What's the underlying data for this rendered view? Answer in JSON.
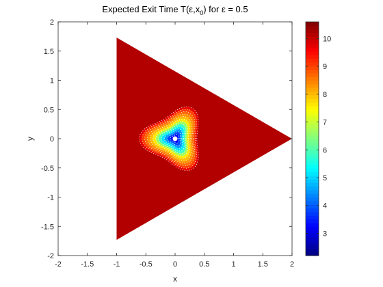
{
  "chart_data": {
    "type": "heatmap",
    "subtype": "filled-contour",
    "title": "Expected Exit Time T(ε,x0) for ε = 0.5",
    "title_parts": {
      "before": "Expected Exit Time T(ε,x",
      "sub": "0",
      "after": ") for ε = 0.5"
    },
    "xlabel": "x",
    "ylabel": "y",
    "xlim": [
      -2,
      2
    ],
    "ylim": [
      -2,
      2
    ],
    "xticks": [
      -2,
      -1.5,
      -1,
      -0.5,
      0,
      0.5,
      1,
      1.5,
      2
    ],
    "xtick_labels": [
      "-2",
      "-1.5",
      "-1",
      "-0.5",
      "0",
      "0.5",
      "1",
      "1.5",
      "2"
    ],
    "yticks": [
      -2,
      -1.5,
      -1,
      -0.5,
      0,
      0.5,
      1,
      1.5,
      2
    ],
    "ytick_labels": [
      "-2",
      "-1.5",
      "-1",
      "-0.5",
      "0",
      "0.5",
      "1",
      "1.5",
      "2"
    ],
    "domain_vertices": [
      [
        2,
        0
      ],
      [
        -1,
        1.732
      ],
      [
        -1,
        -1.732
      ]
    ],
    "marker": {
      "x": 0,
      "y": 0,
      "color": "#ffffff"
    },
    "levels": [
      2.6,
      3.2,
      3.8,
      4.4,
      5.0,
      5.6,
      6.2,
      6.8,
      7.4,
      8.0,
      8.6,
      9.2,
      9.8,
      10.4
    ],
    "level_colors": [
      "#00009f",
      "#0000ee",
      "#0044ff",
      "#0099ff",
      "#00e6ff",
      "#3dffc2",
      "#a1ff5e",
      "#ffea00",
      "#ffbf00",
      "#ff9400",
      "#ff6a00",
      "#ff3c00",
      "#e60000",
      "#b20000"
    ],
    "contour_style": {
      "color": "#ffffff",
      "dash": "dotted"
    },
    "colorbar": {
      "clim": [
        2.2,
        10.6
      ],
      "ticks": [
        3,
        4,
        5,
        6,
        7,
        8,
        9,
        10
      ],
      "tick_labels": [
        "3",
        "4",
        "5",
        "6",
        "7",
        "8",
        "9",
        "10"
      ],
      "colormap": "jet"
    },
    "grid": false,
    "legend": "none"
  }
}
